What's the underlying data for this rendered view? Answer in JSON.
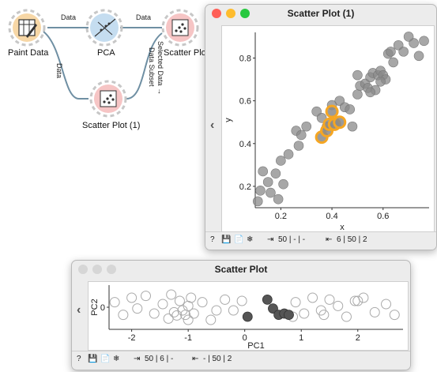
{
  "workflow": {
    "nodes": [
      {
        "id": "paint",
        "label": "Paint Data",
        "color": "#f7d7a6",
        "ring": "#f0b870"
      },
      {
        "id": "pca",
        "label": "PCA",
        "color": "#c5ddf0",
        "ring": "#8fbde0"
      },
      {
        "id": "scatter",
        "label": "Scatter Plot",
        "color": "#f6c5c5",
        "ring": "#ec9a9a"
      },
      {
        "id": "scatter1",
        "label": "Scatter Plot (1)",
        "color": "#f6c5c5",
        "ring": "#ec9a9a"
      }
    ],
    "links": {
      "paint_pca": "Data",
      "pca_scatter": "Data",
      "paint_scatter1": "Data",
      "scatter1_scatter_top": "Selected Data →",
      "scatter1_scatter_bottom": "Data Subset"
    }
  },
  "scatter1_window": {
    "title": "Scatter Plot (1)",
    "plot": {
      "xlabel": "x",
      "ylabel": "y",
      "xlim": [
        0.1,
        0.78
      ],
      "ylim": [
        0.1,
        0.92
      ],
      "xticks": [
        "0.2",
        "0.4",
        "0.6"
      ],
      "xtick_vals": [
        0.2,
        0.4,
        0.6
      ],
      "yticks": [
        "0.2",
        "0.4",
        "0.6",
        "0.8"
      ],
      "ytick_vals": [
        0.2,
        0.4,
        0.6,
        0.8
      ],
      "point_color": "#8a8a8a",
      "selection_color": "#f5a623"
    },
    "status": {
      "in": "50 | - | -",
      "out": "6 | 50 | 2"
    }
  },
  "scatter_window": {
    "title": "Scatter Plot",
    "plot": {
      "xlabel": "PC1",
      "ylabel": "PC2",
      "xlim": [
        -2.4,
        2.8
      ],
      "ylim": [
        -0.35,
        0.35
      ],
      "xticks": [
        "-2",
        "-1",
        "0",
        "1",
        "2"
      ],
      "xtick_vals": [
        -2,
        -1,
        0,
        1,
        2
      ],
      "yticks": [
        "0"
      ],
      "ytick_vals": [
        0
      ],
      "subset_color": "#555555"
    },
    "status": {
      "in": "50 | 6 | -",
      "out": "- | 50 | 2"
    }
  },
  "chart_data": [
    {
      "type": "scatter",
      "title": "Scatter Plot (1)",
      "xlabel": "x",
      "ylabel": "y",
      "xlim": [
        0.1,
        0.78
      ],
      "ylim": [
        0.1,
        0.92
      ],
      "series": [
        {
          "x": [
            0.11,
            0.12,
            0.13,
            0.15,
            0.16,
            0.18,
            0.19,
            0.2,
            0.21,
            0.23,
            0.26,
            0.27,
            0.28,
            0.3,
            0.34,
            0.36,
            0.38,
            0.4,
            0.43,
            0.45,
            0.47,
            0.48,
            0.5,
            0.51,
            0.53,
            0.54,
            0.55,
            0.56,
            0.57,
            0.58,
            0.59,
            0.6,
            0.61,
            0.62,
            0.64,
            0.66,
            0.68,
            0.72,
            0.74,
            0.76,
            0.59,
            0.63,
            0.7,
            0.5,
            0.55
          ],
          "y": [
            0.13,
            0.18,
            0.27,
            0.22,
            0.17,
            0.26,
            0.14,
            0.32,
            0.21,
            0.35,
            0.46,
            0.39,
            0.44,
            0.48,
            0.55,
            0.52,
            0.48,
            0.58,
            0.6,
            0.57,
            0.56,
            0.48,
            0.63,
            0.67,
            0.68,
            0.66,
            0.71,
            0.73,
            0.65,
            0.72,
            0.74,
            0.72,
            0.7,
            0.82,
            0.78,
            0.86,
            0.83,
            0.87,
            0.81,
            0.88,
            0.69,
            0.83,
            0.9,
            0.72,
            0.64
          ]
        },
        {
          "x": [
            0.36,
            0.38,
            0.39,
            0.4,
            0.41,
            0.43
          ],
          "y": [
            0.43,
            0.46,
            0.49,
            0.55,
            0.49,
            0.5
          ]
        }
      ]
    },
    {
      "type": "scatter",
      "title": "Scatter Plot",
      "xlabel": "PC1",
      "ylabel": "PC2",
      "xlim": [
        -2.4,
        2.8
      ],
      "ylim": [
        -0.35,
        0.35
      ],
      "series": [
        {
          "x": [
            -2.3,
            -2.15,
            -2.0,
            -1.9,
            -1.75,
            -1.6,
            -1.45,
            -1.3,
            -1.25,
            -1.2,
            -1.15,
            -1.1,
            -1.05,
            -1.0,
            -0.95,
            -0.9,
            -0.75,
            -0.6,
            -0.35,
            -0.2,
            -0.05,
            0.9,
            1.05,
            1.2,
            1.35,
            1.5,
            1.65,
            1.8,
            1.95,
            2.1,
            2.3,
            2.5,
            2.65,
            -1.35,
            -1.0,
            0.85,
            1.4,
            2.0,
            -0.5
          ],
          "y": [
            0.08,
            -0.12,
            0.15,
            -0.02,
            0.18,
            -0.1,
            0.05,
            0.2,
            -0.08,
            -0.13,
            0.1,
            -0.05,
            -0.12,
            0.02,
            0.15,
            -0.1,
            0.08,
            -0.2,
            0.12,
            -0.05,
            0.1,
            0.08,
            -0.1,
            0.15,
            -0.05,
            0.12,
            0.02,
            -0.15,
            0.1,
            0.15,
            -0.08,
            0.05,
            -0.12,
            -0.18,
            -0.2,
            -0.15,
            -0.12,
            0.1,
            -0.05
          ]
        },
        {
          "x": [
            0.05,
            0.4,
            0.5,
            0.6,
            0.7,
            0.78
          ],
          "y": [
            -0.15,
            0.12,
            -0.02,
            -0.12,
            -0.1,
            -0.12
          ]
        }
      ]
    }
  ]
}
